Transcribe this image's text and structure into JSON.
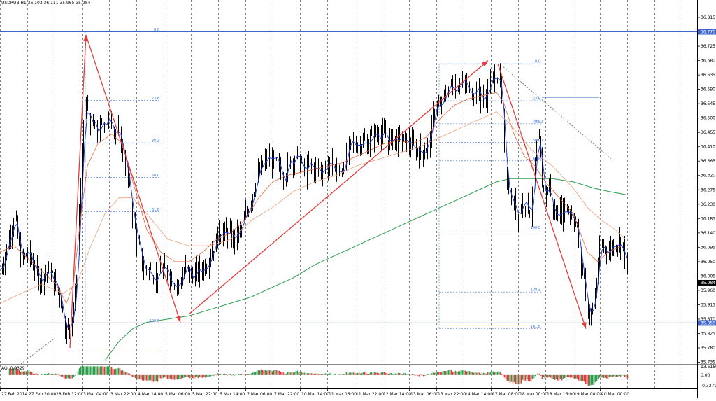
{
  "header": {
    "title": "USDRUB,H1 36.103 36.111 35.965 35.984"
  },
  "chart_data": {
    "type": "candlestick",
    "title": "USDRUB,H1 36.103 36.111 35.965 35.984",
    "ylim": [
      35.735,
      36.86
    ],
    "price_ticks": [
      "36.815",
      "36.770",
      "36.725",
      "36.680",
      "36.635",
      "36.590",
      "36.545",
      "36.500",
      "36.455",
      "36.410",
      "36.365",
      "36.320",
      "36.275",
      "36.230",
      "36.185",
      "36.140",
      "36.095",
      "36.050",
      "36.005",
      "35.960",
      "35.915",
      "35.870",
      "35.825",
      "35.780",
      "35.735"
    ],
    "price_labels": {
      "upper_line": "36.770",
      "lower_line": "35.858",
      "current": "35.984"
    },
    "time_labels": [
      "27 Feb 2014",
      "27 Feb 20:00",
      "28 Feb 12:00",
      "3 Mar 04:00",
      "3 Mar 22:00",
      "4 Mar 14:00",
      "5 Mar 06:00",
      "5 Mar 22:00",
      "6 Mar 14:00",
      "7 Mar 06:00",
      "7 Mar 22:00",
      "10 Mar 14:00",
      "11 Mar 06:00",
      "11 Mar 22:00",
      "12 Mar 14:00",
      "13 Mar 06:00",
      "13 Mar 22:00",
      "14 Mar 14:00",
      "17 Mar 08:00",
      "18 Mar 00:00",
      "18 Mar 16:00",
      "19 Mar 08:00",
      "20 Mar 00:00"
    ],
    "close_path": [
      [
        0,
        36.02
      ],
      [
        10,
        36.1
      ],
      [
        20,
        36.2
      ],
      [
        30,
        36.05
      ],
      [
        40,
        36.08
      ],
      [
        55,
        36.0
      ],
      [
        70,
        36.02
      ],
      [
        85,
        35.95
      ],
      [
        95,
        35.83
      ],
      [
        100,
        35.85
      ],
      [
        108,
        35.95
      ],
      [
        115,
        36.3
      ],
      [
        122,
        36.55
      ],
      [
        130,
        36.48
      ],
      [
        140,
        36.45
      ],
      [
        150,
        36.5
      ],
      [
        160,
        36.48
      ],
      [
        170,
        36.45
      ],
      [
        180,
        36.35
      ],
      [
        188,
        36.22
      ],
      [
        195,
        36.12
      ],
      [
        205,
        36.03
      ],
      [
        215,
        36.02
      ],
      [
        225,
        36.0
      ],
      [
        235,
        36.03
      ],
      [
        245,
        36.0
      ],
      [
        255,
        35.97
      ],
      [
        265,
        36.03
      ],
      [
        275,
        36.0
      ],
      [
        285,
        36.02
      ],
      [
        295,
        36.05
      ],
      [
        305,
        36.1
      ],
      [
        315,
        36.15
      ],
      [
        325,
        36.13
      ],
      [
        335,
        36.12
      ],
      [
        345,
        36.15
      ],
      [
        355,
        36.22
      ],
      [
        365,
        36.3
      ],
      [
        375,
        36.35
      ],
      [
        385,
        36.38
      ],
      [
        395,
        36.35
      ],
      [
        405,
        36.32
      ],
      [
        415,
        36.37
      ],
      [
        425,
        36.38
      ],
      [
        435,
        36.33
      ],
      [
        445,
        36.35
      ],
      [
        455,
        36.33
      ],
      [
        465,
        36.35
      ],
      [
        475,
        36.35
      ],
      [
        485,
        36.32
      ],
      [
        495,
        36.38
      ],
      [
        505,
        36.42
      ],
      [
        515,
        36.43
      ],
      [
        525,
        36.42
      ],
      [
        535,
        36.45
      ],
      [
        545,
        36.45
      ],
      [
        555,
        36.43
      ],
      [
        565,
        36.43
      ],
      [
        575,
        36.43
      ],
      [
        585,
        36.42
      ],
      [
        595,
        36.4
      ],
      [
        605,
        36.4
      ],
      [
        615,
        36.43
      ],
      [
        622,
        36.55
      ],
      [
        630,
        36.52
      ],
      [
        640,
        36.6
      ],
      [
        650,
        36.6
      ],
      [
        660,
        36.62
      ],
      [
        670,
        36.58
      ],
      [
        680,
        36.6
      ],
      [
        690,
        36.55
      ],
      [
        700,
        36.6
      ],
      [
        710,
        36.65
      ],
      [
        715,
        36.6
      ],
      [
        720,
        36.45
      ],
      [
        725,
        36.3
      ],
      [
        730,
        36.25
      ],
      [
        740,
        36.2
      ],
      [
        750,
        36.25
      ],
      [
        760,
        36.2
      ],
      [
        765,
        36.35
      ],
      [
        770,
        36.45
      ],
      [
        775,
        36.3
      ],
      [
        780,
        36.25
      ],
      [
        785,
        36.3
      ],
      [
        790,
        36.2
      ],
      [
        800,
        36.2
      ],
      [
        810,
        36.22
      ],
      [
        820,
        36.2
      ],
      [
        825,
        36.15
      ],
      [
        830,
        36.05
      ],
      [
        835,
        36.0
      ],
      [
        840,
        35.9
      ],
      [
        845,
        35.88
      ],
      [
        850,
        35.92
      ],
      [
        855,
        36.05
      ],
      [
        860,
        36.1
      ],
      [
        870,
        36.08
      ],
      [
        880,
        36.12
      ],
      [
        890,
        36.1
      ],
      [
        895,
        36.05
      ],
      [
        898,
        35.984
      ]
    ],
    "ema_short": [
      [
        0,
        36.08
      ],
      [
        20,
        36.1
      ],
      [
        40,
        36.06
      ],
      [
        60,
        36.02
      ],
      [
        80,
        35.98
      ],
      [
        95,
        35.92
      ],
      [
        105,
        35.98
      ],
      [
        115,
        36.18
      ],
      [
        125,
        36.35
      ],
      [
        140,
        36.42
      ],
      [
        160,
        36.45
      ],
      [
        175,
        36.42
      ],
      [
        190,
        36.3
      ],
      [
        210,
        36.15
      ],
      [
        230,
        36.08
      ],
      [
        250,
        36.05
      ],
      [
        270,
        36.05
      ],
      [
        290,
        36.08
      ],
      [
        310,
        36.12
      ],
      [
        330,
        36.14
      ],
      [
        350,
        36.18
      ],
      [
        370,
        36.25
      ],
      [
        390,
        36.3
      ],
      [
        410,
        36.32
      ],
      [
        430,
        36.33
      ],
      [
        450,
        36.34
      ],
      [
        470,
        36.35
      ],
      [
        490,
        36.36
      ],
      [
        510,
        36.38
      ],
      [
        530,
        36.4
      ],
      [
        550,
        36.42
      ],
      [
        570,
        36.43
      ],
      [
        590,
        36.42
      ],
      [
        610,
        36.44
      ],
      [
        630,
        36.5
      ],
      [
        650,
        36.54
      ],
      [
        670,
        36.56
      ],
      [
        690,
        36.57
      ],
      [
        710,
        36.58
      ],
      [
        720,
        36.55
      ],
      [
        735,
        36.45
      ],
      [
        750,
        36.38
      ],
      [
        765,
        36.35
      ],
      [
        780,
        36.3
      ],
      [
        800,
        36.25
      ],
      [
        820,
        36.2
      ],
      [
        840,
        36.08
      ],
      [
        855,
        36.05
      ],
      [
        870,
        36.08
      ],
      [
        890,
        36.1
      ]
    ],
    "ema_long": [
      [
        0,
        35.92
      ],
      [
        30,
        35.95
      ],
      [
        60,
        35.98
      ],
      [
        90,
        35.95
      ],
      [
        110,
        35.98
      ],
      [
        130,
        36.1
      ],
      [
        150,
        36.2
      ],
      [
        170,
        36.25
      ],
      [
        190,
        36.25
      ],
      [
        210,
        36.2
      ],
      [
        240,
        36.12
      ],
      [
        270,
        36.1
      ],
      [
        300,
        36.1
      ],
      [
        330,
        36.12
      ],
      [
        360,
        36.18
      ],
      [
        390,
        36.22
      ],
      [
        420,
        36.27
      ],
      [
        450,
        36.3
      ],
      [
        480,
        36.32
      ],
      [
        510,
        36.35
      ],
      [
        540,
        36.37
      ],
      [
        570,
        36.39
      ],
      [
        600,
        36.41
      ],
      [
        630,
        36.44
      ],
      [
        660,
        36.47
      ],
      [
        690,
        36.5
      ],
      [
        710,
        36.52
      ],
      [
        730,
        36.48
      ],
      [
        760,
        36.4
      ],
      [
        790,
        36.35
      ],
      [
        820,
        36.28
      ],
      [
        840,
        36.22
      ],
      [
        860,
        36.18
      ],
      [
        880,
        36.15
      ],
      [
        895,
        36.12
      ]
    ],
    "sma_200": [
      [
        150,
        35.74
      ],
      [
        170,
        35.8
      ],
      [
        190,
        35.84
      ],
      [
        210,
        35.86
      ],
      [
        240,
        35.87
      ],
      [
        270,
        35.88
      ],
      [
        300,
        35.9
      ],
      [
        330,
        35.92
      ],
      [
        360,
        35.94
      ],
      [
        390,
        35.97
      ],
      [
        420,
        36.0
      ],
      [
        450,
        36.04
      ],
      [
        480,
        36.07
      ],
      [
        510,
        36.1
      ],
      [
        540,
        36.13
      ],
      [
        570,
        36.16
      ],
      [
        600,
        36.19
      ],
      [
        630,
        36.22
      ],
      [
        660,
        36.25
      ],
      [
        690,
        36.28
      ],
      [
        710,
        36.3
      ],
      [
        730,
        36.31
      ],
      [
        760,
        36.31
      ],
      [
        790,
        36.31
      ],
      [
        820,
        36.3
      ],
      [
        850,
        36.28
      ],
      [
        870,
        36.27
      ],
      [
        895,
        36.26
      ]
    ],
    "horizontal_lines": [
      36.77,
      35.858
    ],
    "short_lines": [
      {
        "x1": 100,
        "x2": 230,
        "y": 35.77
      },
      {
        "x1": 775,
        "x2": 856,
        "y": 36.565
      }
    ],
    "arrows": [
      [
        [
          100,
          35.78
        ],
        [
          123,
          36.76
        ]
      ],
      [
        [
          123,
          36.76
        ],
        [
          258,
          35.86
        ]
      ],
      [
        [
          270,
          35.885
        ],
        [
          698,
          36.68
        ]
      ],
      [
        [
          712,
          36.67
        ],
        [
          838,
          35.84
        ]
      ]
    ],
    "fibo_left": {
      "x1": 122,
      "x2": 230,
      "levels": [
        [
          "0.0",
          36.77
        ],
        [
          "23.6",
          36.555
        ],
        [
          "38.2",
          36.422
        ],
        [
          "50.0",
          36.314
        ],
        [
          "61.8",
          36.206
        ],
        [
          "100.0",
          35.858
        ]
      ]
    },
    "fibo_right": {
      "x1": 628,
      "x2": 775,
      "levels": [
        [
          "0.0",
          36.67
        ],
        [
          "23.6",
          36.554
        ],
        [
          "38.2",
          36.482
        ],
        [
          "50.0",
          36.424
        ],
        [
          "61.8",
          36.366
        ],
        [
          "100.0",
          36.15
        ],
        [
          "138.2",
          35.955
        ],
        [
          "161.8",
          35.84
        ]
      ]
    },
    "fibo_right_extra_labels": [
      [
        "38.2",
        765,
        36.482
      ],
      [
        "50.0",
        765,
        36.424
      ],
      [
        "61.8",
        765,
        36.366
      ]
    ],
    "dotted_trend": [
      [
        [
          30,
          35.73
        ],
        [
          78,
          35.81
        ]
      ],
      [
        [
          720,
          36.66
        ],
        [
          875,
          36.37
        ]
      ]
    ],
    "indicator": {
      "name": "AO",
      "label": "AO: 0.0329",
      "ticks": [
        "13.6160",
        "0.00",
        "-0.3279"
      ],
      "ylim": [
        -0.3279,
        0.25
      ]
    }
  }
}
